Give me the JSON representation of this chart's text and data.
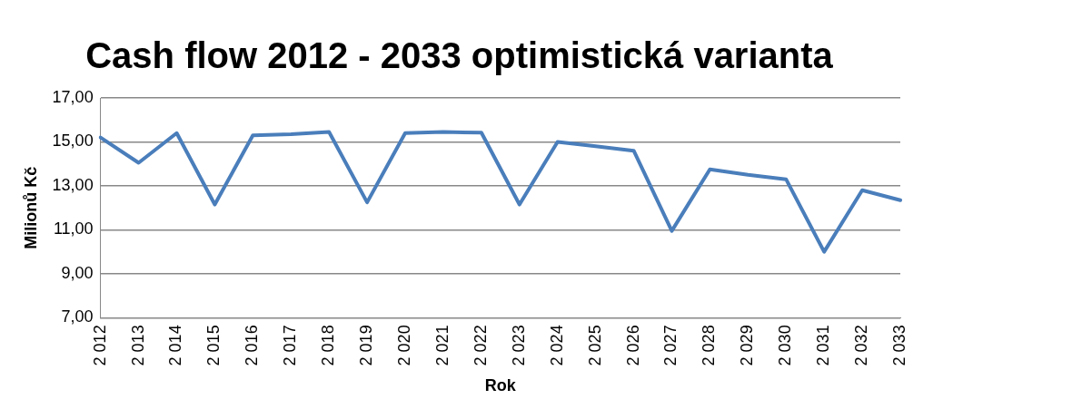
{
  "chart_data": {
    "type": "line",
    "title": "Cash flow 2012 - 2033 optimistická varianta",
    "xlabel": "Rok",
    "ylabel": "Milionů Kč",
    "categories": [
      "2 012",
      "2 013",
      "2 014",
      "2 015",
      "2 016",
      "2 017",
      "2 018",
      "2 019",
      "2 020",
      "2 021",
      "2 022",
      "2 023",
      "2 024",
      "2 025",
      "2 026",
      "2 027",
      "2 028",
      "2 029",
      "2 030",
      "2 031",
      "2 032",
      "2 033"
    ],
    "series": [
      {
        "color": "#4a7ebb",
        "values": [
          15.2,
          14.05,
          15.4,
          12.15,
          15.3,
          15.35,
          15.45,
          12.25,
          15.4,
          15.45,
          15.42,
          12.15,
          15.0,
          14.8,
          14.6,
          10.95,
          13.75,
          13.5,
          13.3,
          10.0,
          12.8,
          12.35
        ]
      }
    ],
    "ylim": [
      7,
      17
    ],
    "yticks": [
      {
        "value": 7,
        "label": "7,00"
      },
      {
        "value": 9,
        "label": "9,00"
      },
      {
        "value": 11,
        "label": "11,00"
      },
      {
        "value": 13,
        "label": "13,00"
      },
      {
        "value": 15,
        "label": "15,00"
      },
      {
        "value": 17,
        "label": "17,00"
      }
    ],
    "grid": "y",
    "legend": false,
    "marker": "none",
    "line_style": "solid"
  }
}
